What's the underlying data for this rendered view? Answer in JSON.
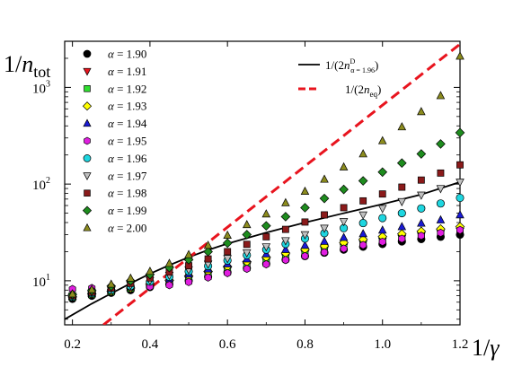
{
  "chart_data": {
    "type": "scatter",
    "y_axis_label": {
      "main": "1/",
      "var": "n",
      "sub": "tot"
    },
    "x_axis_label": {
      "main": "1/",
      "var": "γ"
    },
    "x_ticks": [
      "0.2",
      "0.4",
      "0.6",
      "0.8",
      "1.0",
      "1.2"
    ],
    "y_ticks": [
      {
        "base": "10",
        "exp": "1",
        "value": 10
      },
      {
        "base": "10",
        "exp": "2",
        "value": 100
      },
      {
        "base": "10",
        "exp": "3",
        "value": 1000
      }
    ],
    "xlim": [
      0.18,
      1.2
    ],
    "ylim": [
      3.5,
      3000
    ],
    "y_scale": "log",
    "legend_placement": "top-left",
    "alpha_symbol": "α",
    "x": [
      0.2,
      0.25,
      0.3,
      0.35,
      0.4,
      0.45,
      0.5,
      0.55,
      0.6,
      0.65,
      0.7,
      0.75,
      0.8,
      0.85,
      0.9,
      0.95,
      1.0,
      1.05,
      1.1,
      1.15,
      1.2
    ],
    "series": [
      {
        "label_value": "1.90",
        "marker": "circle",
        "color": "#000000",
        "values": [
          6.5,
          7.0,
          7.5,
          8.0,
          8.6,
          9.2,
          10.0,
          11.0,
          12.2,
          13.5,
          15.0,
          16.5,
          18.0,
          19.5,
          21.0,
          22.5,
          24.0,
          25.5,
          27.0,
          28.5,
          30.0
        ]
      },
      {
        "label_value": "1.91",
        "marker": "triangle-down",
        "color": "#e8141e",
        "values": [
          6.6,
          7.1,
          7.6,
          8.1,
          8.8,
          9.5,
          10.4,
          11.5,
          12.8,
          14.2,
          15.8,
          17.4,
          19.0,
          20.6,
          22.3,
          24.0,
          25.7,
          27.4,
          29.1,
          30.8,
          32.5
        ]
      },
      {
        "label_value": "1.92",
        "marker": "square",
        "color": "#2fe02f",
        "values": [
          6.7,
          7.2,
          7.7,
          8.3,
          9.0,
          9.8,
          10.8,
          12.0,
          13.4,
          15.0,
          16.7,
          18.4,
          20.1,
          21.8,
          23.6,
          25.4,
          27.2,
          29.0,
          30.8,
          32.6,
          34.5
        ]
      },
      {
        "label_value": "1.93",
        "marker": "diamond",
        "color": "#ffff00",
        "values": [
          6.8,
          7.3,
          7.8,
          8.4,
          9.2,
          10.1,
          11.2,
          12.5,
          14.0,
          15.7,
          17.5,
          19.3,
          21.1,
          22.9,
          24.8,
          26.7,
          28.6,
          30.5,
          32.4,
          34.3,
          36.2
        ]
      },
      {
        "label_value": "1.94",
        "marker": "triangle-up",
        "color": "#1a1ad6",
        "values": [
          6.9,
          7.4,
          8.0,
          8.7,
          9.5,
          10.5,
          11.7,
          13.2,
          14.9,
          16.8,
          18.9,
          21.0,
          23.2,
          25.5,
          28.0,
          30.6,
          33.3,
          36.2,
          39.3,
          42.5,
          48.0
        ]
      },
      {
        "label_value": "1.95",
        "marker": "hexagon",
        "color": "#e01ee0",
        "values": [
          8.2,
          8.4,
          8.5,
          8.6,
          8.7,
          9.0,
          9.7,
          10.8,
          12.0,
          13.3,
          14.8,
          16.4,
          18.0,
          19.7,
          21.5,
          23.4,
          25.3,
          27.2,
          29.2,
          31.3,
          33.5
        ]
      },
      {
        "label_value": "1.96",
        "marker": "circle",
        "color": "#1ed6e0",
        "values": [
          6.8,
          7.4,
          8.0,
          8.8,
          9.8,
          11.0,
          12.5,
          14.2,
          16.2,
          18.4,
          21.0,
          24.0,
          27.3,
          31.0,
          35.0,
          39.5,
          44.5,
          50.0,
          56.0,
          63.0,
          72.0
        ]
      },
      {
        "label_value": "1.97",
        "marker": "triangle-down",
        "color": "#c0c0c0",
        "values": [
          6.9,
          7.5,
          8.2,
          9.0,
          10.1,
          11.4,
          13.0,
          14.9,
          17.0,
          19.5,
          22.5,
          26.0,
          30.0,
          35.0,
          41.0,
          48.0,
          56.0,
          66.0,
          77.0,
          90.0,
          105.0
        ]
      },
      {
        "label_value": "1.98",
        "marker": "square",
        "color": "#8b1a1a",
        "values": [
          7.0,
          7.6,
          8.4,
          9.4,
          10.7,
          12.3,
          14.3,
          16.8,
          20.0,
          23.8,
          28.5,
          34.0,
          40.5,
          48.0,
          57.0,
          67.0,
          79.0,
          93.0,
          110.0,
          130.0,
          158.0
        ]
      },
      {
        "label_value": "1.99",
        "marker": "diamond",
        "color": "#1e8c1e",
        "values": [
          7.2,
          7.9,
          8.8,
          10.0,
          11.6,
          13.7,
          16.5,
          20.0,
          24.5,
          30.0,
          37.0,
          46.0,
          57.0,
          71.0,
          88.0,
          108.0,
          133.0,
          165.0,
          205.0,
          260.0,
          340.0
        ]
      },
      {
        "label_value": "2.00",
        "marker": "triangle-up",
        "color": "#8c8c1e",
        "values": [
          7.3,
          8.1,
          9.2,
          10.6,
          12.5,
          15.1,
          18.6,
          23.2,
          29.5,
          38.0,
          49.0,
          64.0,
          84.0,
          112.0,
          150.0,
          205.0,
          280.0,
          390.0,
          560.0,
          820.0,
          2100.0
        ]
      }
    ],
    "lines": [
      {
        "label": {
          "pre": "1/(2",
          "var": "n",
          "sup": "D",
          "sub": "α = 1.96",
          "post": ")"
        },
        "style": "solid",
        "color": "#000000",
        "x": [
          0.18,
          0.25,
          0.3,
          0.35,
          0.4,
          0.45,
          0.5,
          0.55,
          0.6,
          0.7,
          0.8,
          0.9,
          1.0,
          1.1,
          1.2
        ],
        "y": [
          4.0,
          5.8,
          7.4,
          9.4,
          11.8,
          14.5,
          17.5,
          20.8,
          24.2,
          31.5,
          40.0,
          50.0,
          62.0,
          78.0,
          105.0
        ]
      },
      {
        "label": {
          "pre": "1/(2",
          "var": "n",
          "sub": "eq",
          "post": ")"
        },
        "style": "dashed",
        "color": "#e8141e",
        "x": [
          0.28,
          1.2
        ],
        "y": [
          3.5,
          2800
        ]
      }
    ]
  }
}
